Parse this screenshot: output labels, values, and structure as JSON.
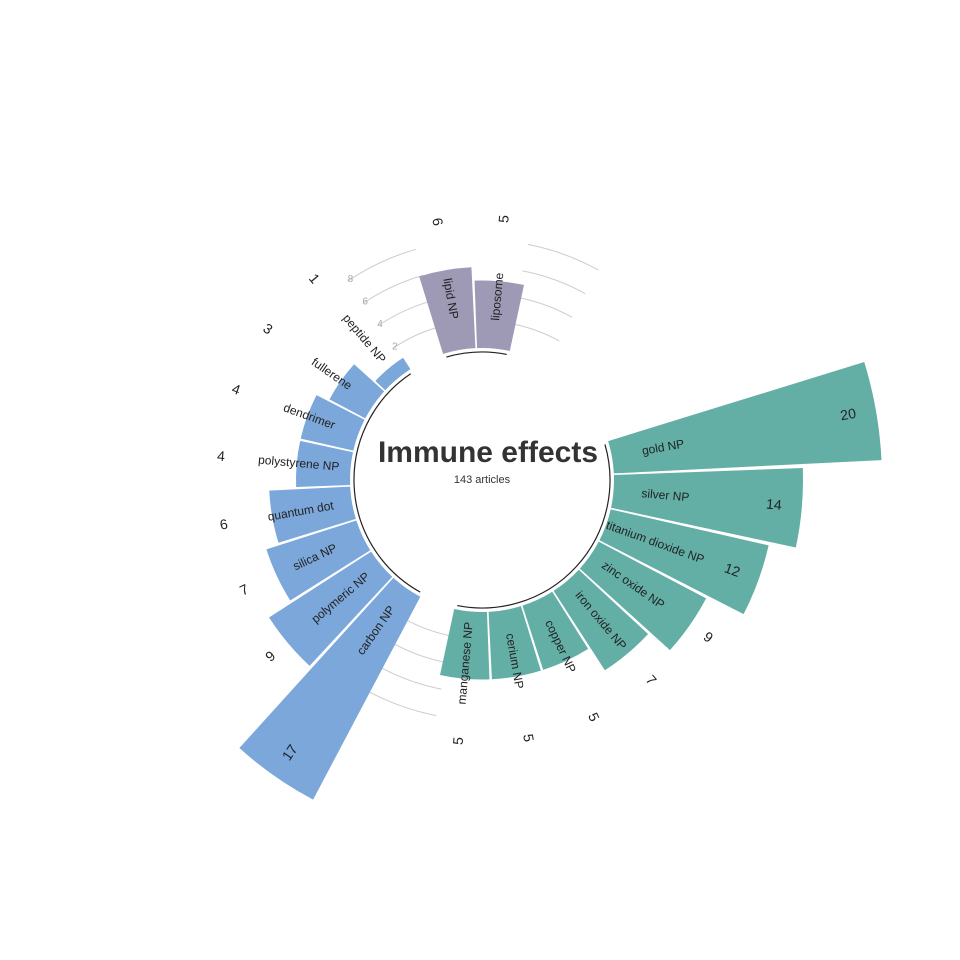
{
  "chart_data": {
    "type": "bar",
    "layout": "circular",
    "title": "Immune effects",
    "subtitle": "143 articles",
    "y_ticks": [
      2,
      4,
      6,
      8
    ],
    "groups": [
      {
        "color": "#9e9ab5",
        "categories": [
          "lipid NP",
          "liposome"
        ],
        "values": [
          6,
          5
        ]
      },
      {
        "color": "#63afa6",
        "categories": [
          "gold NP",
          "silver NP",
          "titanium dioxide NP",
          "zinc oxide NP",
          "iron oxide NP",
          "copper NP",
          "cerium NP",
          "manganese NP"
        ],
        "values": [
          20,
          14,
          12,
          9,
          7,
          5,
          5,
          5
        ]
      },
      {
        "color": "#7ba7da",
        "categories": [
          "carbon NP",
          "polymeric NP",
          "silica NP",
          "quantum dot",
          "polystyrene NP",
          "dendrimer",
          "fullerene",
          "peptide NP"
        ],
        "values": [
          17,
          9,
          7,
          6,
          4,
          4,
          3,
          1
        ]
      }
    ]
  }
}
